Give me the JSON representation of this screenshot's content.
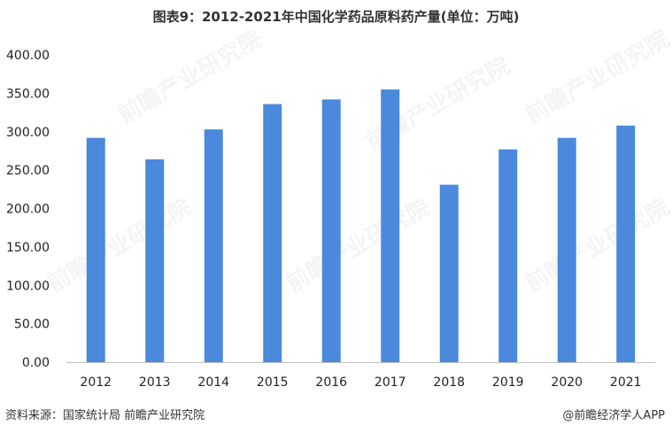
{
  "header": {
    "title": "图表9：2012-2021年中国化学药品原料药产量(单位：万吨)"
  },
  "footer": {
    "source": "资料来源：国家统计局 前瞻产业研究院",
    "credit": "@前瞻经济学人APP"
  },
  "watermark": {
    "text": "前瞻产业研究院"
  },
  "colors": {
    "bar": "#4a89dc",
    "axis": "#bfbfbf"
  },
  "chart_data": {
    "type": "bar",
    "title": "图表9：2012-2021年中国化学药品原料药产量(单位：万吨)",
    "categories": [
      "2012",
      "2013",
      "2014",
      "2015",
      "2016",
      "2017",
      "2018",
      "2019",
      "2020",
      "2021"
    ],
    "values": [
      292,
      264,
      303,
      336,
      342,
      355,
      231,
      277,
      292,
      308
    ],
    "ylim": [
      0,
      400
    ],
    "yticks": [
      "0.00",
      "50.00",
      "100.00",
      "150.00",
      "200.00",
      "250.00",
      "300.00",
      "350.00",
      "400.00"
    ],
    "xlabel": "",
    "ylabel": "",
    "grid": false,
    "legend": "none"
  }
}
